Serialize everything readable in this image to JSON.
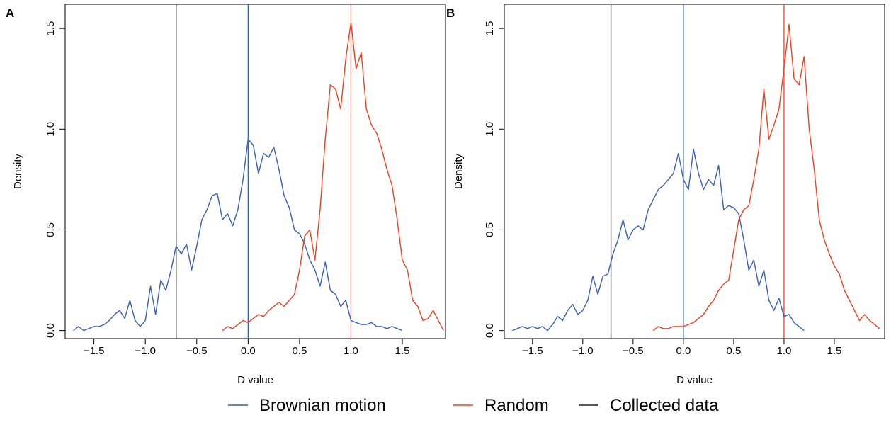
{
  "legend": {
    "placement": "bottom-center",
    "items": [
      {
        "label": "Brownian motion",
        "color": "#3a5fb5"
      },
      {
        "label": "Random",
        "color": "#f0401f"
      },
      {
        "label": "Collected data",
        "color": "#222222"
      }
    ]
  },
  "chart_data": [
    {
      "type": "line",
      "panel": "A",
      "xlabel": "D value",
      "ylabel": "Density",
      "xlim": [
        -1.78,
        1.92
      ],
      "ylim": [
        -0.04,
        1.62
      ],
      "xticks": [
        "−1.5",
        "−1.0",
        "−0.5",
        "0.0",
        "0.5",
        "1.0",
        "1.5"
      ],
      "xtick_values": [
        -1.5,
        -1.0,
        -0.5,
        0.0,
        0.5,
        1.0,
        1.5
      ],
      "yticks": [
        "0.0",
        "0.5",
        "1.0",
        "1.5"
      ],
      "ytick_values": [
        0,
        0.5,
        1.0,
        1.5
      ],
      "vlines": [
        {
          "series": "Collected data",
          "x": -0.7,
          "color": "#222222"
        },
        {
          "series": "Brownian motion",
          "x": 0.0,
          "color": "#3a5fb5"
        },
        {
          "series": "Random",
          "x": 1.0,
          "color": "#f0401f"
        }
      ],
      "series": [
        {
          "name": "Brownian motion",
          "color": "#3a5fb5",
          "x": [
            -1.7,
            -1.65,
            -1.6,
            -1.55,
            -1.5,
            -1.45,
            -1.4,
            -1.35,
            -1.3,
            -1.25,
            -1.2,
            -1.15,
            -1.1,
            -1.05,
            -1.0,
            -0.95,
            -0.9,
            -0.85,
            -0.8,
            -0.75,
            -0.7,
            -0.65,
            -0.6,
            -0.55,
            -0.5,
            -0.45,
            -0.4,
            -0.35,
            -0.3,
            -0.25,
            -0.2,
            -0.15,
            -0.1,
            -0.05,
            0.0,
            0.05,
            0.1,
            0.15,
            0.2,
            0.25,
            0.3,
            0.35,
            0.4,
            0.45,
            0.5,
            0.55,
            0.6,
            0.65,
            0.7,
            0.75,
            0.8,
            0.85,
            0.9,
            0.95,
            1.0,
            1.05,
            1.1,
            1.15,
            1.2,
            1.25,
            1.3,
            1.35,
            1.4,
            1.45,
            1.5
          ],
          "values": [
            0.0,
            0.02,
            0.0,
            0.01,
            0.02,
            0.02,
            0.03,
            0.05,
            0.08,
            0.1,
            0.06,
            0.15,
            0.05,
            0.02,
            0.05,
            0.22,
            0.08,
            0.25,
            0.2,
            0.3,
            0.42,
            0.38,
            0.43,
            0.3,
            0.42,
            0.55,
            0.6,
            0.67,
            0.68,
            0.55,
            0.58,
            0.52,
            0.6,
            0.75,
            0.95,
            0.92,
            0.78,
            0.88,
            0.86,
            0.91,
            0.8,
            0.67,
            0.61,
            0.5,
            0.48,
            0.43,
            0.35,
            0.3,
            0.22,
            0.34,
            0.2,
            0.18,
            0.12,
            0.15,
            0.05,
            0.04,
            0.03,
            0.03,
            0.04,
            0.02,
            0.02,
            0.01,
            0.02,
            0.01,
            0.0
          ]
        },
        {
          "name": "Random",
          "color": "#f0401f",
          "x": [
            -0.25,
            -0.2,
            -0.15,
            -0.1,
            -0.05,
            0.0,
            0.05,
            0.1,
            0.15,
            0.2,
            0.25,
            0.3,
            0.35,
            0.4,
            0.45,
            0.5,
            0.55,
            0.6,
            0.65,
            0.7,
            0.75,
            0.8,
            0.85,
            0.9,
            0.95,
            1.0,
            1.05,
            1.1,
            1.15,
            1.2,
            1.25,
            1.3,
            1.35,
            1.4,
            1.45,
            1.5,
            1.55,
            1.6,
            1.65,
            1.7,
            1.75,
            1.8,
            1.85,
            1.9
          ],
          "values": [
            0.0,
            0.02,
            0.01,
            0.03,
            0.05,
            0.04,
            0.06,
            0.08,
            0.07,
            0.1,
            0.12,
            0.14,
            0.12,
            0.15,
            0.18,
            0.3,
            0.47,
            0.5,
            0.35,
            0.6,
            0.95,
            1.22,
            1.2,
            1.1,
            1.35,
            1.53,
            1.3,
            1.38,
            1.1,
            1.02,
            0.98,
            0.9,
            0.8,
            0.72,
            0.55,
            0.35,
            0.3,
            0.15,
            0.12,
            0.05,
            0.06,
            0.1,
            0.05,
            0.0
          ]
        }
      ]
    },
    {
      "type": "line",
      "panel": "B",
      "xlabel": "D value",
      "ylabel": "Density",
      "xlim": [
        -1.78,
        2.0
      ],
      "ylim": [
        -0.04,
        1.62
      ],
      "xticks": [
        "−1.5",
        "−1.0",
        "−0.5",
        "0.0",
        "0.5",
        "1.0",
        "1.5"
      ],
      "xtick_values": [
        -1.5,
        -1.0,
        -0.5,
        0.0,
        0.5,
        1.0,
        1.5
      ],
      "yticks": [
        "0.0",
        "0.5",
        "1.0",
        "1.5"
      ],
      "ytick_values": [
        0,
        0.5,
        1.0,
        1.5
      ],
      "vlines": [
        {
          "series": "Collected data",
          "x": -0.72,
          "color": "#222222"
        },
        {
          "series": "Brownian motion",
          "x": 0.0,
          "color": "#3a5fb5"
        },
        {
          "series": "Random",
          "x": 1.0,
          "color": "#f0401f"
        }
      ],
      "series": [
        {
          "name": "Brownian motion",
          "color": "#3a5fb5",
          "x": [
            -1.7,
            -1.65,
            -1.6,
            -1.55,
            -1.5,
            -1.45,
            -1.4,
            -1.35,
            -1.3,
            -1.25,
            -1.2,
            -1.15,
            -1.1,
            -1.05,
            -1.0,
            -0.95,
            -0.9,
            -0.85,
            -0.8,
            -0.75,
            -0.7,
            -0.65,
            -0.6,
            -0.55,
            -0.5,
            -0.45,
            -0.4,
            -0.35,
            -0.3,
            -0.25,
            -0.2,
            -0.15,
            -0.1,
            -0.05,
            0.0,
            0.05,
            0.1,
            0.15,
            0.2,
            0.25,
            0.3,
            0.35,
            0.4,
            0.45,
            0.5,
            0.55,
            0.6,
            0.65,
            0.7,
            0.75,
            0.8,
            0.85,
            0.9,
            0.95,
            1.0,
            1.05,
            1.1,
            1.15,
            1.2
          ],
          "values": [
            0.0,
            0.01,
            0.02,
            0.01,
            0.02,
            0.01,
            0.02,
            0.0,
            0.03,
            0.07,
            0.05,
            0.1,
            0.13,
            0.08,
            0.1,
            0.15,
            0.27,
            0.18,
            0.27,
            0.28,
            0.38,
            0.45,
            0.55,
            0.45,
            0.5,
            0.52,
            0.5,
            0.6,
            0.65,
            0.7,
            0.72,
            0.75,
            0.78,
            0.88,
            0.75,
            0.7,
            0.9,
            0.78,
            0.7,
            0.75,
            0.72,
            0.82,
            0.6,
            0.62,
            0.61,
            0.58,
            0.45,
            0.3,
            0.35,
            0.22,
            0.3,
            0.15,
            0.1,
            0.16,
            0.07,
            0.08,
            0.04,
            0.02,
            0.0
          ]
        },
        {
          "name": "Random",
          "color": "#f0401f",
          "x": [
            -0.3,
            -0.25,
            -0.2,
            -0.15,
            -0.1,
            -0.05,
            0.0,
            0.05,
            0.1,
            0.15,
            0.2,
            0.25,
            0.3,
            0.35,
            0.4,
            0.45,
            0.5,
            0.55,
            0.6,
            0.65,
            0.7,
            0.75,
            0.8,
            0.85,
            0.9,
            0.95,
            1.0,
            1.05,
            1.1,
            1.15,
            1.2,
            1.25,
            1.3,
            1.35,
            1.4,
            1.45,
            1.5,
            1.55,
            1.6,
            1.65,
            1.7,
            1.75,
            1.8,
            1.85,
            1.9,
            1.95
          ],
          "values": [
            0.0,
            0.02,
            0.01,
            0.01,
            0.02,
            0.02,
            0.02,
            0.03,
            0.04,
            0.06,
            0.08,
            0.12,
            0.15,
            0.2,
            0.23,
            0.25,
            0.4,
            0.55,
            0.6,
            0.62,
            0.75,
            0.9,
            1.2,
            0.95,
            1.02,
            1.1,
            1.3,
            1.52,
            1.25,
            1.22,
            1.36,
            1.0,
            0.8,
            0.55,
            0.45,
            0.38,
            0.32,
            0.28,
            0.2,
            0.15,
            0.1,
            0.05,
            0.08,
            0.05,
            0.03,
            0.01
          ]
        }
      ]
    }
  ]
}
